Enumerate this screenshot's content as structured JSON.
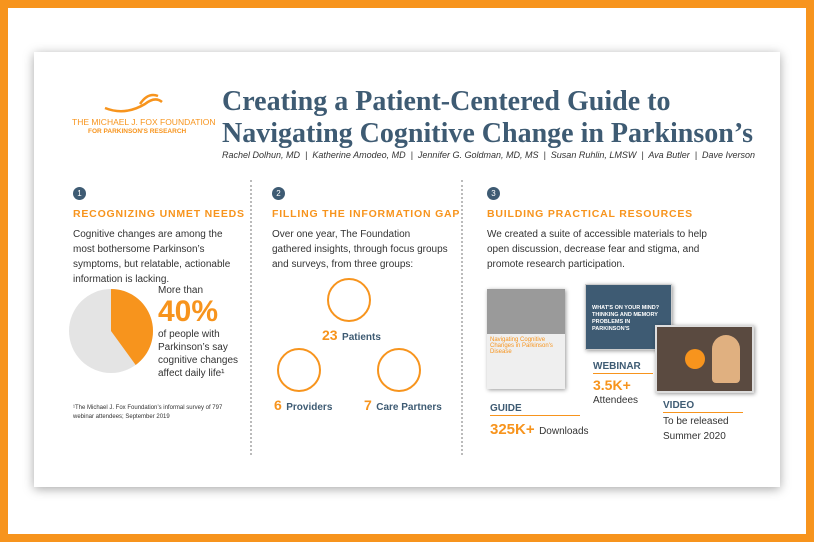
{
  "header": {
    "logo_line1": "THE MICHAEL J. FOX FOUNDATION",
    "logo_line2": "FOR PARKINSON'S RESEARCH",
    "title_line1": "Creating a Patient-Centered Guide to",
    "title_line2": "Navigating Cognitive Change in Parkinson’s",
    "authors": "Rachel Dolhun, MD  |  Katherine Amodeo, MD  |  Jennifer G. Goldman, MD, MS  |  Susan Ruhlin, LMSW  |  Ava Butler  |  Dave Iverson"
  },
  "columns": [
    {
      "number": "1",
      "heading": "RECOGNIZING UNMET NEEDS",
      "body": "Cognitive changes are among the most bothersome Parkinson’s symptoms, but relatable, actionable information is lacking.",
      "stat_intro": "More than",
      "stat": {
        "value": 40,
        "label": "40%"
      },
      "stat_text": "of people with Parkinson’s say cognitive changes affect daily life¹",
      "footnote": "¹The Michael J. Fox Foundation’s informal survey of 797 webinar attendees; September 2019"
    },
    {
      "number": "2",
      "heading": "FILLING THE INFORMATION GAP",
      "body": "Over one year, The Foundation gathered insights, through focus groups and surveys, from three groups:",
      "groups": [
        {
          "count": "23",
          "label": "Patients"
        },
        {
          "count": "6",
          "label": "Providers"
        },
        {
          "count": "7",
          "label": "Care Partners"
        }
      ]
    },
    {
      "number": "3",
      "heading": "BUILDING PRACTICAL RESOURCES",
      "body": "We created a suite of accessible materials to help open discussion, decrease fear and stigma, and promote research participation.",
      "guide": {
        "label": "GUIDE",
        "stat": "325K+",
        "text": "Downloads",
        "cover": "Navigating Cognitive Changes in Parkinson's Disease"
      },
      "webinar": {
        "label": "WEBINAR",
        "stat": "3.5K+",
        "text": "Attendees",
        "screen": "WHAT'S ON YOUR MIND? THINKING AND MEMORY PROBLEMS IN PARKINSON'S"
      },
      "video": {
        "label": "VIDEO",
        "text_line1": "To be released",
        "text_line2": "Summer 2020"
      }
    }
  ]
}
